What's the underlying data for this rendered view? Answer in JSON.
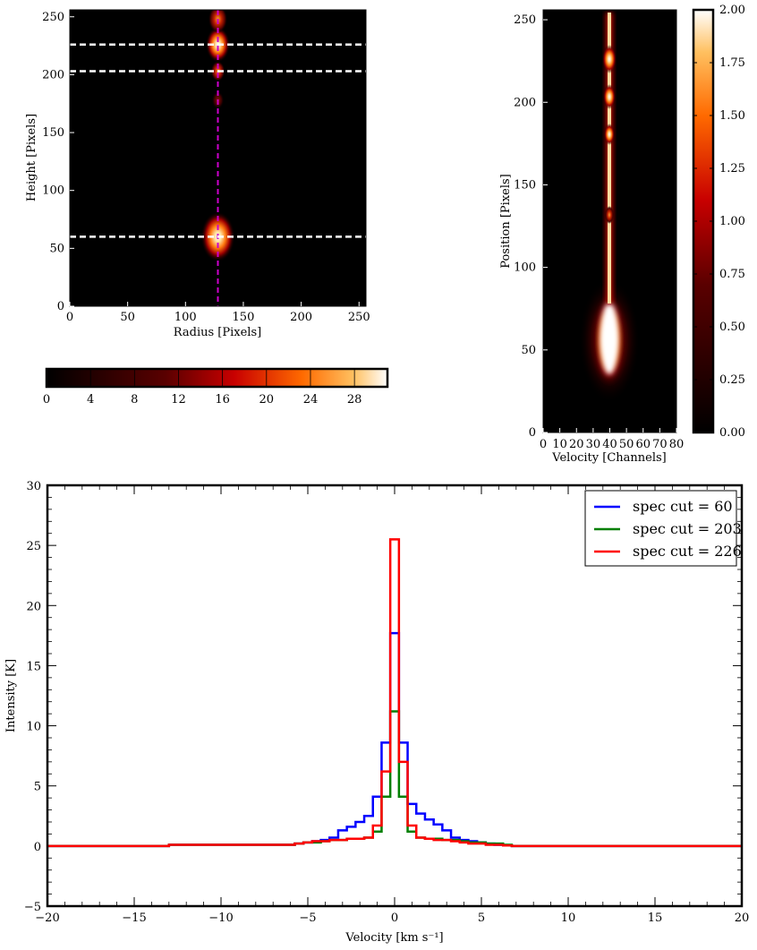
{
  "chart_data": [
    {
      "type": "heatmap",
      "panel": "radius-height map",
      "xlabel": "Radius [Pixels]",
      "ylabel": "Height [Pixels]",
      "xlim": [
        0,
        256
      ],
      "ylim": [
        0,
        256
      ],
      "xticks": [
        "0",
        "50",
        "100",
        "150",
        "200",
        "250"
      ],
      "yticks": [
        "0",
        "50",
        "100",
        "150",
        "200",
        "250"
      ],
      "vertical_cut_x": 128,
      "horizontal_cuts_y": [
        60,
        203,
        226
      ],
      "sources": [
        {
          "x": 128,
          "y": 60,
          "peak": 30
        },
        {
          "x": 128,
          "y": 226,
          "peak": 18
        },
        {
          "x": 128,
          "y": 248,
          "peak": 12
        },
        {
          "x": 128,
          "y": 203,
          "peak": 6
        },
        {
          "x": 128,
          "y": 178,
          "peak": 4
        }
      ],
      "colorbar": {
        "orientation": "horizontal",
        "range": [
          0,
          31
        ],
        "ticks": [
          "0",
          "4",
          "8",
          "12",
          "16",
          "20",
          "24",
          "28"
        ],
        "colormap": "gist_heat"
      }
    },
    {
      "type": "heatmap",
      "panel": "position-velocity diagram",
      "xlabel": "Velocity [Channels]",
      "ylabel": "Position [Pixels]",
      "xlim": [
        0,
        80
      ],
      "ylim": [
        0,
        256
      ],
      "xticks": [
        "0",
        "10",
        "20",
        "30",
        "40",
        "50",
        "60",
        "70",
        "80"
      ],
      "yticks": [
        "0",
        "50",
        "100",
        "150",
        "200",
        "250"
      ],
      "center_channel": 40,
      "colorbar": {
        "orientation": "vertical",
        "range": [
          0,
          2
        ],
        "ticks": [
          "0.00",
          "0.25",
          "0.50",
          "0.75",
          "1.00",
          "1.25",
          "1.50",
          "1.75",
          "2.00"
        ],
        "colormap": "gist_heat"
      }
    },
    {
      "type": "line",
      "style": "step",
      "xlabel": "Velocity [km s⁻¹]",
      "ylabel": "Intensity [K]",
      "xlim": [
        -20,
        20
      ],
      "ylim": [
        -5,
        30
      ],
      "xticks": [
        "−20",
        "−15",
        "−10",
        "−5",
        "0",
        "5",
        "10",
        "15",
        "20"
      ],
      "yticks": [
        "−5",
        "0",
        "5",
        "10",
        "15",
        "20",
        "25",
        "30"
      ],
      "legend_position": "top-right",
      "series": [
        {
          "name": "spec cut = 60",
          "color": "#0000ff",
          "x": [
            -20,
            -6,
            -5.5,
            -5,
            -4.5,
            -4,
            -3.5,
            -3,
            -2.5,
            -2,
            -1.5,
            -1,
            -0.5,
            0,
            0.5,
            1,
            1.5,
            2,
            2.5,
            3,
            3.5,
            4,
            4.5,
            5,
            5.5,
            6,
            6.5,
            7,
            20
          ],
          "y": [
            0,
            0.1,
            0.2,
            0.3,
            0.4,
            0.5,
            0.7,
            1.3,
            1.6,
            2.0,
            2.5,
            4.1,
            8.6,
            17.7,
            8.6,
            3.5,
            2.7,
            2.2,
            1.8,
            1.3,
            0.7,
            0.5,
            0.4,
            0.3,
            0.2,
            0.1,
            0.05,
            0,
            0
          ]
        },
        {
          "name": "spec cut = 203",
          "color": "#007f00",
          "x": [
            -20,
            -6,
            -5.5,
            -5,
            -4.5,
            -4,
            -3.5,
            -3,
            -2.5,
            -2,
            -1.5,
            -1,
            -0.5,
            0,
            0.5,
            1,
            1.5,
            2,
            2.5,
            3,
            3.5,
            4,
            4.5,
            5,
            5.5,
            6,
            6.5,
            7,
            20
          ],
          "y": [
            0,
            0.1,
            0.2,
            0.3,
            0.3,
            0.4,
            0.5,
            0.5,
            0.6,
            0.6,
            0.7,
            1.2,
            4.1,
            11.2,
            4.1,
            1.2,
            0.7,
            0.6,
            0.6,
            0.5,
            0.5,
            0.4,
            0.3,
            0.3,
            0.2,
            0.2,
            0.1,
            0,
            0
          ]
        },
        {
          "name": "spec cut = 226",
          "color": "#ff0000",
          "x": [
            -20,
            -6,
            -5.5,
            -5,
            -4.5,
            -4,
            -3.5,
            -3,
            -2.5,
            -2,
            -1.5,
            -1,
            -0.5,
            0,
            0.5,
            1,
            1.5,
            2,
            2.5,
            3,
            3.5,
            4,
            4.5,
            5,
            5.5,
            6,
            6.5,
            7,
            20
          ],
          "y": [
            0,
            0.1,
            0.2,
            0.3,
            0.4,
            0.4,
            0.5,
            0.5,
            0.6,
            0.6,
            0.7,
            1.7,
            6.2,
            25.5,
            7.0,
            1.7,
            0.7,
            0.6,
            0.5,
            0.5,
            0.4,
            0.3,
            0.2,
            0.2,
            0.1,
            0.1,
            0.05,
            0,
            0
          ]
        }
      ]
    }
  ]
}
